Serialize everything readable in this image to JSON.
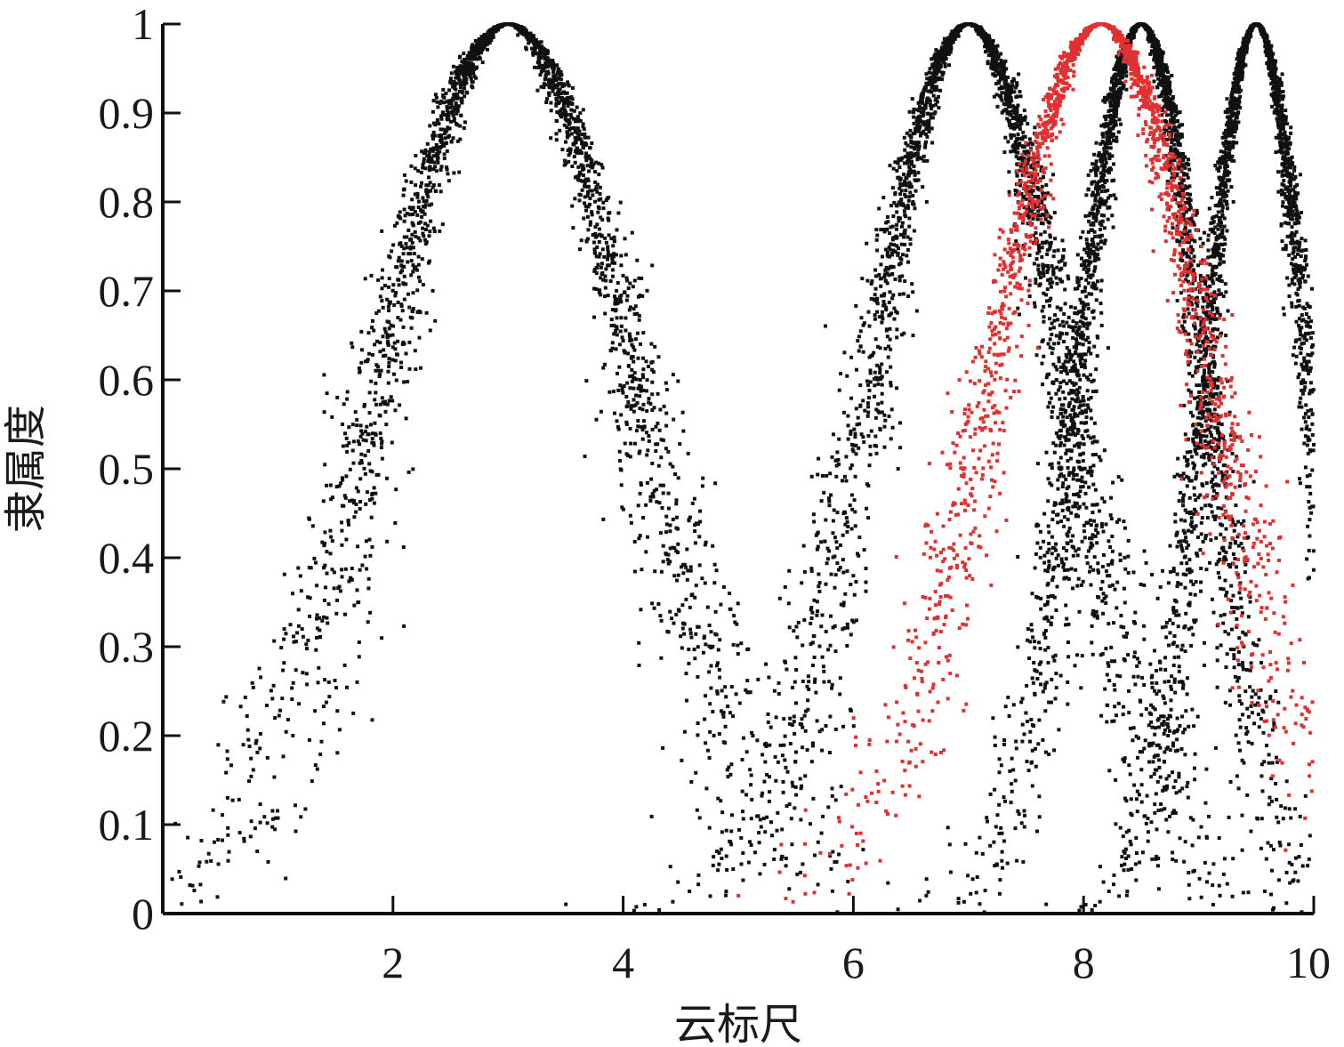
{
  "chart_data": {
    "type": "scatter",
    "title": "",
    "xlabel": "云标尺",
    "ylabel": "隶属度",
    "xlim": [
      0,
      10
    ],
    "ylim": [
      0,
      1
    ],
    "xticks": [
      2,
      4,
      6,
      8,
      10
    ],
    "xtick_labels": [
      "2",
      "4",
      "6",
      "8",
      "10"
    ],
    "yticks": [
      0,
      0.1,
      0.2,
      0.3,
      0.4,
      0.5,
      0.6,
      0.7,
      0.8,
      0.9,
      1
    ],
    "ytick_labels": [
      "0",
      "0.1",
      "0.2",
      "0.3",
      "0.4",
      "0.5",
      "0.6",
      "0.7",
      "0.8",
      "0.9",
      "1"
    ],
    "grid": false,
    "legend": "none",
    "series": [
      {
        "color": "#111111",
        "model": "normal-cloud",
        "Ex": 3.0,
        "En": 1.1,
        "He": 0.15,
        "points": 2500
      },
      {
        "color": "#111111",
        "model": "normal-cloud",
        "Ex": 7.0,
        "En": 0.85,
        "He": 0.12,
        "points": 2500
      },
      {
        "color": "#111111",
        "model": "normal-cloud",
        "Ex": 8.5,
        "En": 0.55,
        "He": 0.08,
        "points": 2500
      },
      {
        "color": "#111111",
        "model": "normal-cloud",
        "Ex": 9.5,
        "En": 0.45,
        "He": 0.06,
        "points": 2500
      },
      {
        "color": "#e03030",
        "model": "normal-cloud",
        "Ex": 8.15,
        "En": 0.95,
        "He": 0.12,
        "points": 2000
      }
    ]
  }
}
